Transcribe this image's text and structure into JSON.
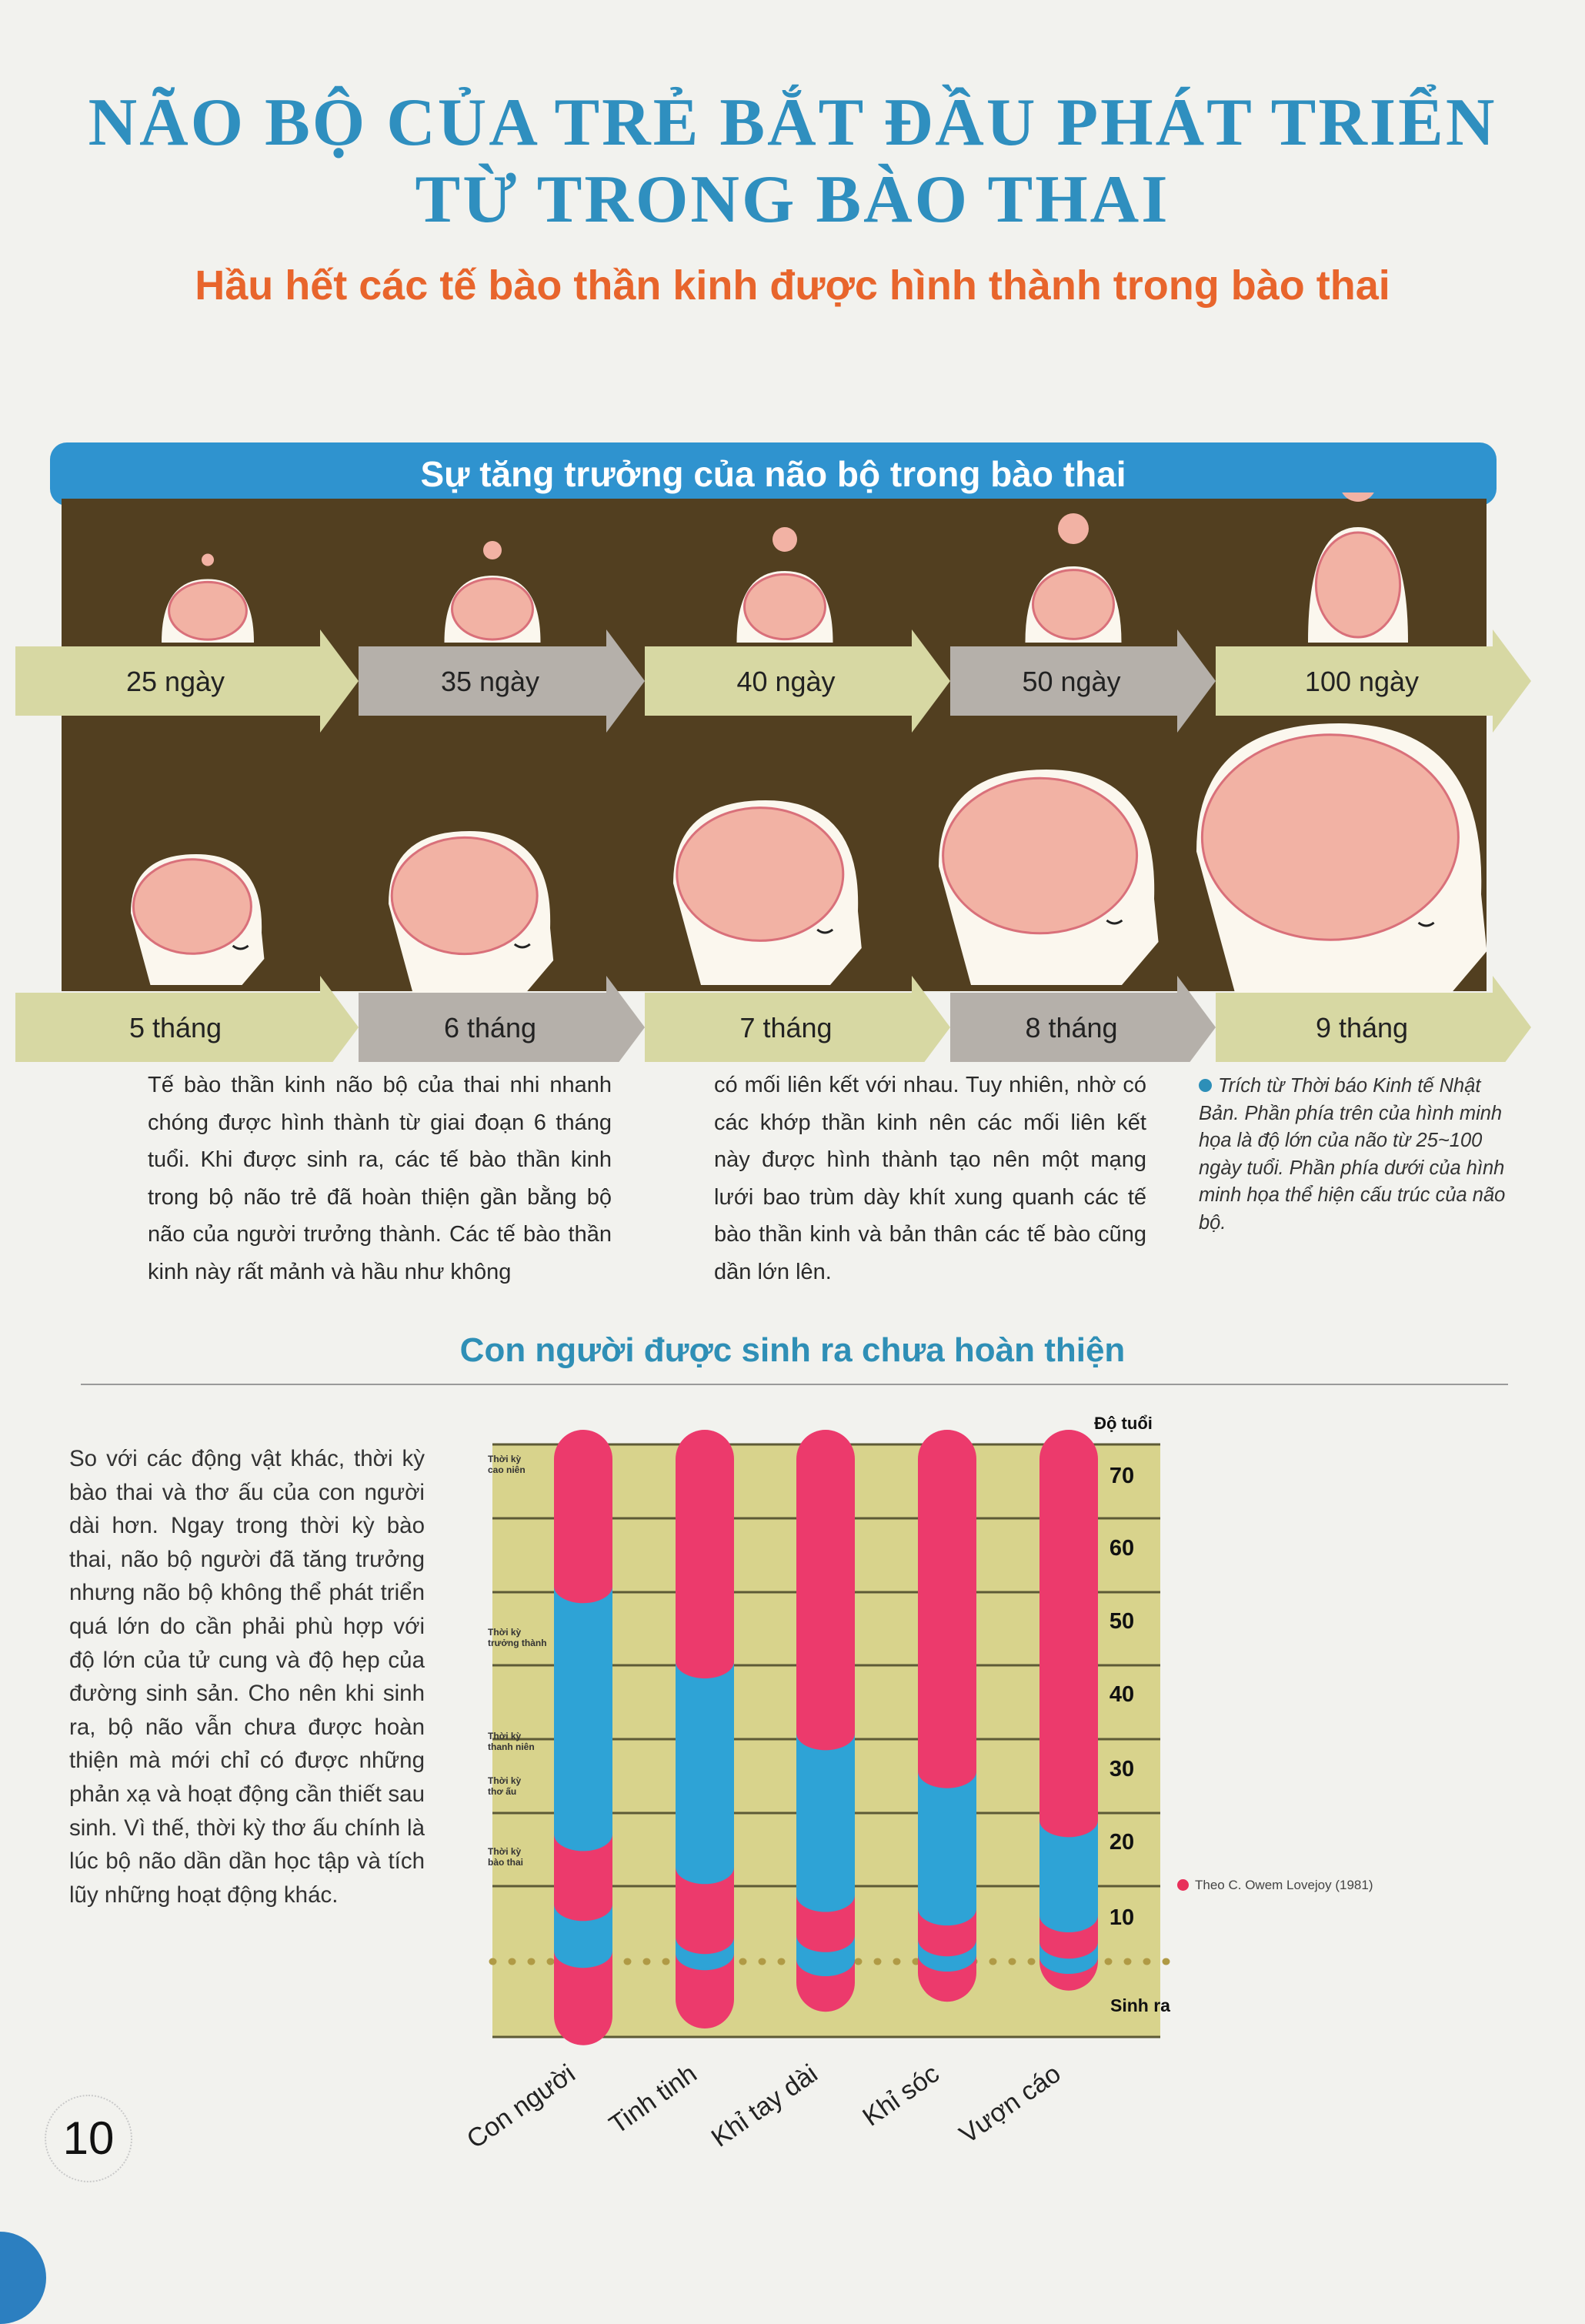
{
  "header": {
    "title_line1": "NÃO BỘ CỦA TRẺ BẮT ĐẦU PHÁT TRIỂN",
    "title_line2": "TỪ TRONG BÀO THAI",
    "subtitle": "Hầu hết các tế bào thần kinh được hình thành trong bào thai"
  },
  "growth_figure": {
    "banner": "Sự tăng trưởng của não bộ trong bào thai",
    "top_row": [
      "25 ngày",
      "35 ngày",
      "40 ngày",
      "50 ngày",
      "100 ngày"
    ],
    "bottom_row": [
      "5 tháng",
      "6 tháng",
      "7 tháng",
      "8 tháng",
      "9 tháng"
    ],
    "colors": {
      "panel": "#523f20",
      "arrow_light": "#d7d8a3",
      "arrow_gray": "#b5b0aa",
      "brain": "#f2b2a4",
      "head": "#fbf7ee"
    }
  },
  "body": {
    "col1": "Tế bào thần kinh não bộ của thai nhi nhanh chóng được hình thành từ giai đoạn 6 tháng tuổi. Khi được sinh ra, các tế bào thần kinh trong bộ não trẻ đã hoàn thiện gần bằng bộ não của người trưởng thành. Các tế bào thần kinh này rất mảnh và hầu như không",
    "col2": "có mối liên kết với nhau. Tuy nhiên, nhờ có các khớp thần kinh nên các mối liên kết này được hình thành tạo nên một mạng lưới bao trùm dày khít xung quanh các tế bào thần kinh và bản thân các tế bào cũng dần lớn lên.",
    "caption": "Trích từ Thời báo Kinh tế Nhật Bản. Phần phía trên của hình minh họa là độ lớn của não từ 25~100 ngày tuổi. Phần phía dưới của hình minh họa thể hiện cấu trúc của não bộ."
  },
  "section2": {
    "heading": "Con người được sinh ra chưa hoàn thiện",
    "paragraph": "So với các động vật khác, thời kỳ bào thai và thơ ấu của con người dài hơn. Ngay trong thời kỳ bào thai, não bộ người đã tăng trưởng nhưng não bộ không thể phát triển quá lớn do cần phải phù hợp với độ lớn của tử cung và độ hẹp của đường sinh sản. Cho nên khi sinh ra, bộ não vẫn chưa được hoàn thiện mà mới chỉ có được những phản xạ và hoạt động cần thiết sau sinh. Vì thế, thời kỳ thơ ấu chính là lúc bộ não dần dần học tập và tích lũy những hoạt động khác.",
    "source": "Theo C. Owem Lovejoy (1981)"
  },
  "chart_data": {
    "type": "bar",
    "stacked": true,
    "ylabel": "Độ tuổi",
    "y_ticks": [
      "70",
      "60",
      "50",
      "40",
      "30",
      "20",
      "10"
    ],
    "y_zero_label": "Sinh ra",
    "categories": [
      "Con người",
      "Tinh tinh",
      "Khỉ tay dài",
      "Khỉ sóc",
      "Vượn cáo"
    ],
    "phase_labels": [
      "Thời kỳ cao niên",
      "Thời kỳ trưởng thành",
      "Thời kỳ thanh niên",
      "Thời kỳ thơ ấu",
      "Thời kỳ bào thai"
    ],
    "phase_boundaries_years": {
      "note_order": "bottom, birth/infancy start, youth start, adult start, elder start, top",
      "Con người": [
        -0.75,
        2.3,
        11.5,
        20.8,
        54.5,
        76
      ],
      "Tinh tinh": [
        -0.6,
        1.8,
        5.3,
        16.4,
        44.2,
        76
      ],
      "Khỉ tay dài": [
        -0.45,
        0.5,
        5.7,
        12.7,
        34.5,
        76
      ],
      "Khỉ sóc": [
        -0.36,
        1.5,
        4.8,
        10.9,
        29.4,
        76
      ],
      "Vượn cáo": [
        -0.26,
        1.0,
        4.3,
        10.0,
        22.7,
        76
      ]
    },
    "ylim": [
      -1,
      76
    ],
    "grid": true,
    "colors": {
      "pink": "#ec3a6c",
      "blue": "#2ea3d6",
      "background": "#d8d38c",
      "grid": "#5d5a36",
      "birth_line": "#b09a45"
    }
  },
  "footer": {
    "page_number": "10"
  }
}
